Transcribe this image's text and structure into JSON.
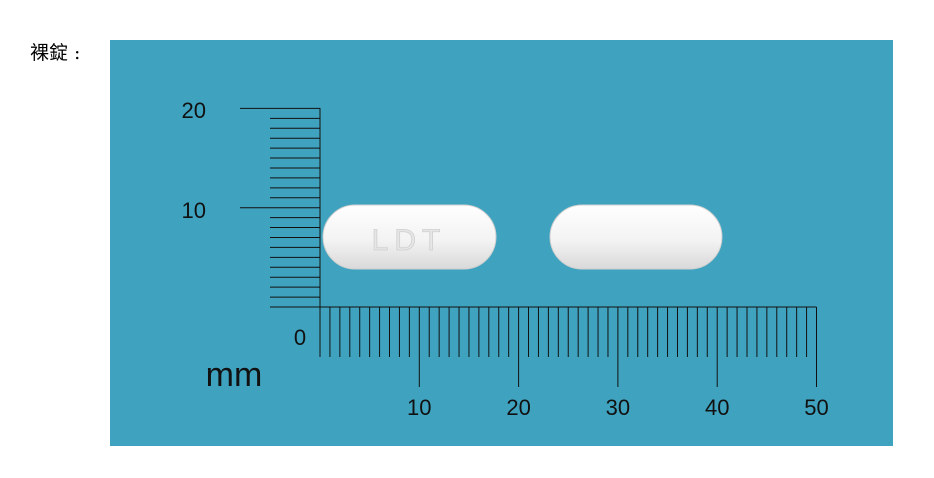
{
  "caption": "裸錠 :",
  "scale": {
    "unit": "mm",
    "origin": "0",
    "y_ticks": [
      "10",
      "20"
    ],
    "x_ticks": [
      "10",
      "20",
      "30",
      "40",
      "50"
    ]
  },
  "tablets": [
    {
      "side": "front",
      "imprint": "LDT"
    },
    {
      "side": "back",
      "imprint": ""
    }
  ],
  "colors": {
    "background": "#3fa3c0",
    "tablet": "#f4f4f4",
    "ruler": "#111111"
  }
}
